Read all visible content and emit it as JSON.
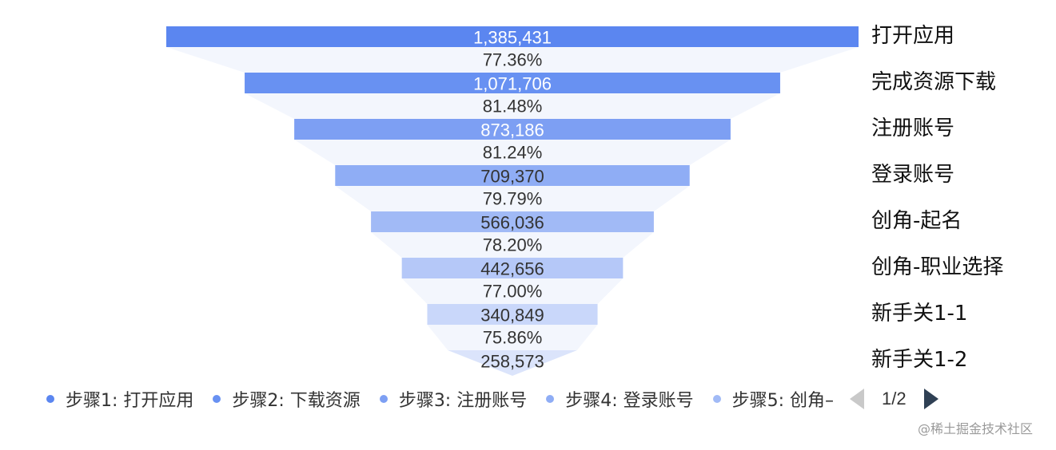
{
  "chart_data": {
    "type": "funnel",
    "stages": [
      {
        "name": "打开应用",
        "value": 1385431,
        "value_label": "1,385,431",
        "color": "#5b86f0"
      },
      {
        "name": "完成资源下载",
        "value": 1071706,
        "value_label": "1,071,706",
        "color": "#6891f2"
      },
      {
        "name": "注册账号",
        "value": 873186,
        "value_label": "873,186",
        "color": "#7d9ff3"
      },
      {
        "name": "登录账号",
        "value": 709370,
        "value_label": "709,370",
        "color": "#8fadf5"
      },
      {
        "name": "创角-起名",
        "value": 566036,
        "value_label": "566,036",
        "color": "#a1baf6"
      },
      {
        "name": "创角-职业选择",
        "value": 442656,
        "value_label": "442,656",
        "color": "#b5c8f8"
      },
      {
        "name": "新手关1-1",
        "value": 340849,
        "value_label": "340,849",
        "color": "#c9d7fa"
      },
      {
        "name": "新手关1-2",
        "value": 258573,
        "value_label": "258,573",
        "color": "#dbe4fb"
      }
    ],
    "conversion_rates": [
      "77.36%",
      "81.48%",
      "81.24%",
      "79.79%",
      "78.20%",
      "77.00%",
      "75.86%"
    ]
  },
  "legend": {
    "items": [
      {
        "label": "步骤1: 打开应用",
        "color": "#5b86f0"
      },
      {
        "label": "步骤2: 下载资源",
        "color": "#6891f2"
      },
      {
        "label": "步骤3: 注册账号",
        "color": "#7d9ff3"
      },
      {
        "label": "步骤4: 登录账号",
        "color": "#8fadf5"
      },
      {
        "label": "步骤5: 创角–",
        "color": "#a1baf6"
      }
    ],
    "page_indicator": "1/2"
  },
  "watermark": "@稀土掘金技术社区"
}
